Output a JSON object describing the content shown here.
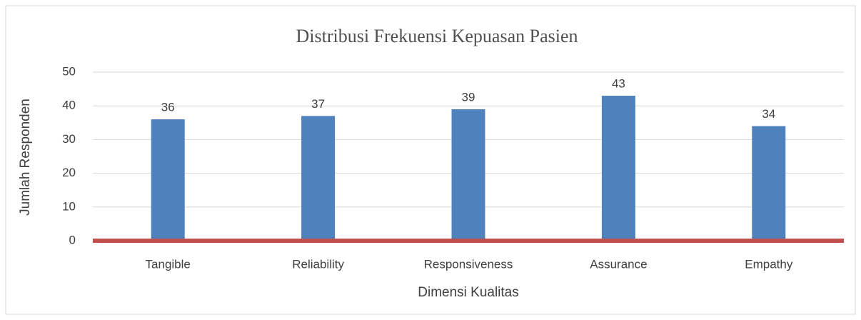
{
  "chart_data": {
    "type": "bar",
    "title": "Distribusi Frekuensi Kepuasan Pasien",
    "xlabel": "Dimensi Kualitas",
    "ylabel": "Jumlah Responden",
    "categories": [
      "Tangible",
      "Reliability",
      "Responsiveness",
      "Assurance",
      "Empathy"
    ],
    "values": [
      36,
      37,
      39,
      43,
      34
    ],
    "color": "#4f81bd",
    "axis_color": "#c0504d",
    "ylim": [
      0,
      50
    ],
    "yticks": [
      0,
      10,
      20,
      30,
      40,
      50
    ],
    "grid": true,
    "data_labels": true
  }
}
